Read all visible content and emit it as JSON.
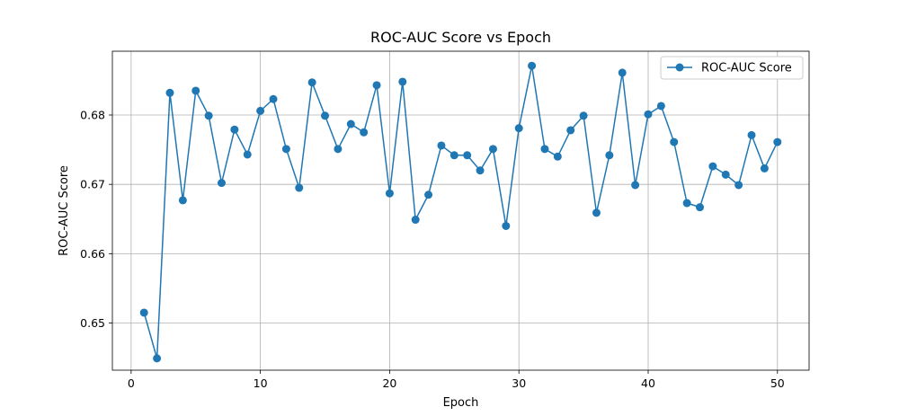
{
  "chart_data": {
    "type": "line",
    "title": "ROC-AUC Score vs Epoch",
    "xlabel": "Epoch",
    "ylabel": "ROC-AUC Score",
    "xlim": [
      -1.45,
      52.45
    ],
    "ylim": [
      0.6432,
      0.6892
    ],
    "xticks": [
      0,
      10,
      20,
      30,
      40,
      50
    ],
    "yticks": [
      0.65,
      0.66,
      0.67,
      0.68
    ],
    "ytick_labels": [
      "0.65",
      "0.66",
      "0.67",
      "0.68"
    ],
    "grid": true,
    "legend_position": "top-right",
    "series": [
      {
        "name": "ROC-AUC Score",
        "color": "#1f77b4",
        "marker": "circle",
        "x": [
          1,
          2,
          3,
          4,
          5,
          6,
          7,
          8,
          9,
          10,
          11,
          12,
          13,
          14,
          15,
          16,
          17,
          18,
          19,
          20,
          21,
          22,
          23,
          24,
          25,
          26,
          27,
          28,
          29,
          30,
          31,
          32,
          33,
          34,
          35,
          36,
          37,
          38,
          39,
          40,
          41,
          42,
          43,
          44,
          45,
          46,
          47,
          48,
          49,
          50
        ],
        "y": [
          0.6515,
          0.6449,
          0.6832,
          0.6677,
          0.6835,
          0.6799,
          0.6702,
          0.6779,
          0.6743,
          0.6806,
          0.6823,
          0.6751,
          0.6695,
          0.6847,
          0.6799,
          0.6751,
          0.6787,
          0.6775,
          0.6843,
          0.6687,
          0.6848,
          0.6649,
          0.6685,
          0.6756,
          0.6742,
          0.6742,
          0.672,
          0.6751,
          0.664,
          0.6781,
          0.6871,
          0.6751,
          0.674,
          0.6778,
          0.6799,
          0.6659,
          0.6742,
          0.6861,
          0.6699,
          0.6801,
          0.6813,
          0.6761,
          0.6673,
          0.6667,
          0.6726,
          0.6714,
          0.6699,
          0.6771,
          0.6723,
          0.6761
        ]
      }
    ]
  }
}
